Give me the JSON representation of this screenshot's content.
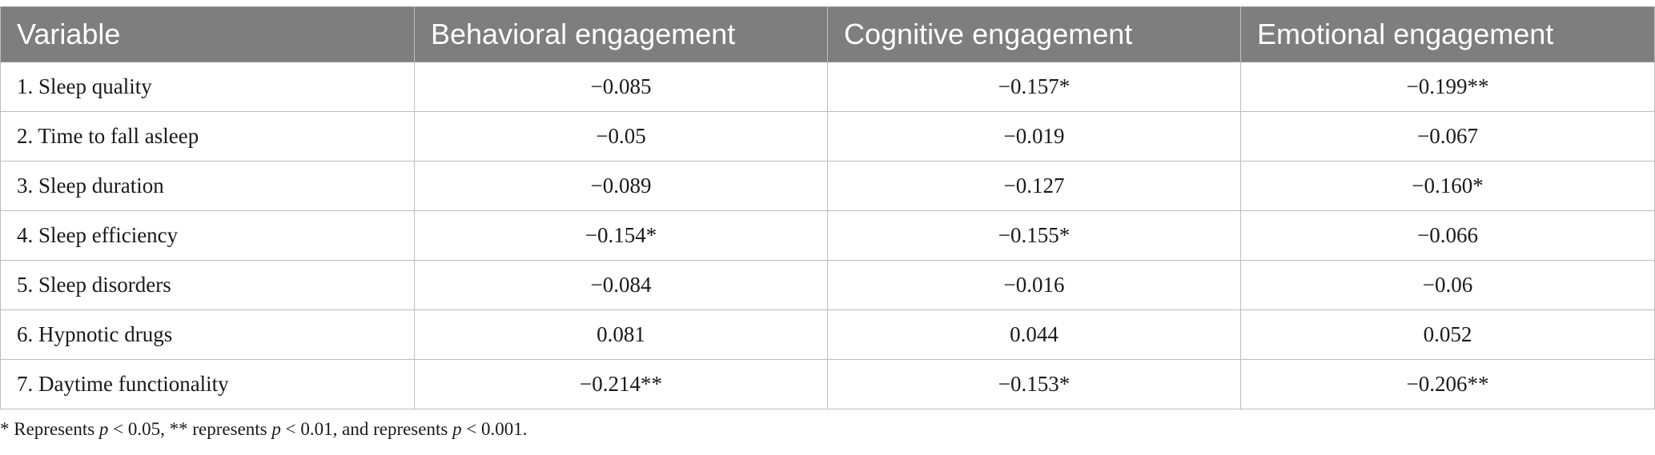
{
  "table": {
    "headers": [
      "Variable",
      "Behavioral engagement",
      "Cognitive engagement",
      "Emotional engagement"
    ],
    "rows": [
      [
        "1. Sleep quality",
        "−0.085",
        "−0.157*",
        "−0.199**"
      ],
      [
        "2. Time to fall asleep",
        "−0.05",
        "−0.019",
        "−0.067"
      ],
      [
        "3. Sleep duration",
        "−0.089",
        "−0.127",
        "−0.160*"
      ],
      [
        "4. Sleep efficiency",
        "−0.154*",
        "−0.155*",
        "−0.066"
      ],
      [
        "5. Sleep disorders",
        "−0.084",
        "−0.016",
        "−0.06"
      ],
      [
        "6. Hypnotic drugs",
        "0.081",
        "0.044",
        "0.052"
      ],
      [
        "7. Daytime functionality",
        "−0.214**",
        "−0.153*",
        "−0.206**"
      ]
    ]
  },
  "footnote": {
    "part1": "* Represents ",
    "p1": "p",
    "part2": " < 0.05, ** represents ",
    "p2": "p",
    "part3": " < 0.01, and represents ",
    "p3": "p",
    "part4": " < 0.001."
  }
}
